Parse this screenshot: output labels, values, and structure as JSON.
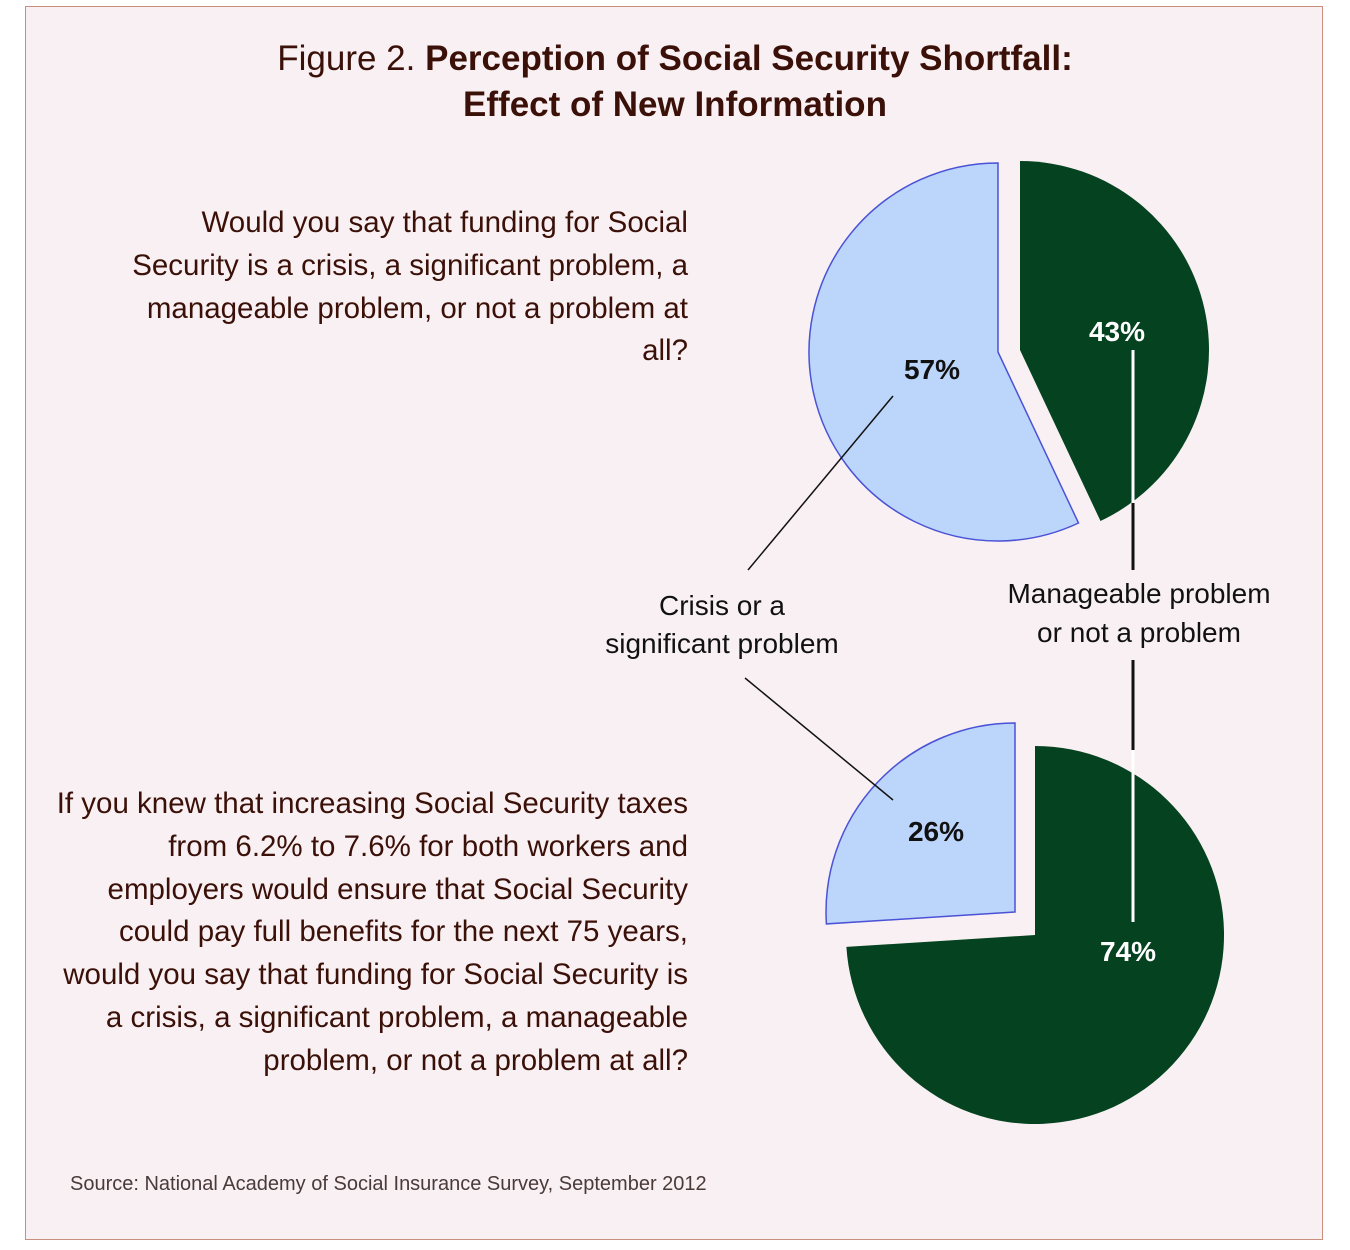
{
  "title": {
    "prefix": "Figure 2.",
    "line1": "Perception of Social Security Shortfall:",
    "line2": "Effect of New Information"
  },
  "questions": [
    "Would you say that funding for Social Security is a crisis, a significant problem, a manageable problem, or not a problem at all?",
    "If you knew that increasing Social Security taxes from 6.2% to 7.6% for both workers and employers would ensure that Social Security could pay full benefits for the next 75 years, would you say that funding for Social Security is a crisis, a significant problem, a manageable problem, or not a problem at all?"
  ],
  "source": "Source: National Academy of Social Insurance Survey, September 2012",
  "colors": {
    "crisis": "#bcd5fb",
    "crisis_stroke": "#4a52d6",
    "manageable": "#044220",
    "text_dark": "#3a1008"
  },
  "chart_data": [
    {
      "type": "pie",
      "title": "",
      "slices": [
        {
          "label": "Crisis or a significant problem",
          "value": 57,
          "text": "57%",
          "color": "#bcd5fb"
        },
        {
          "label": "Manageable problem or not a problem",
          "value": 43,
          "text": "43%",
          "color": "#044220"
        }
      ]
    },
    {
      "type": "pie",
      "title": "",
      "slices": [
        {
          "label": "Crisis or a significant problem",
          "value": 26,
          "text": "26%",
          "color": "#bcd5fb"
        },
        {
          "label": "Manageable problem or not a problem",
          "value": 74,
          "text": "74%",
          "color": "#044220"
        }
      ]
    }
  ],
  "legend_labels": {
    "crisis": [
      "Crisis or a",
      "significant problem"
    ],
    "manageable": [
      "Manageable problem",
      "or not a problem"
    ]
  }
}
